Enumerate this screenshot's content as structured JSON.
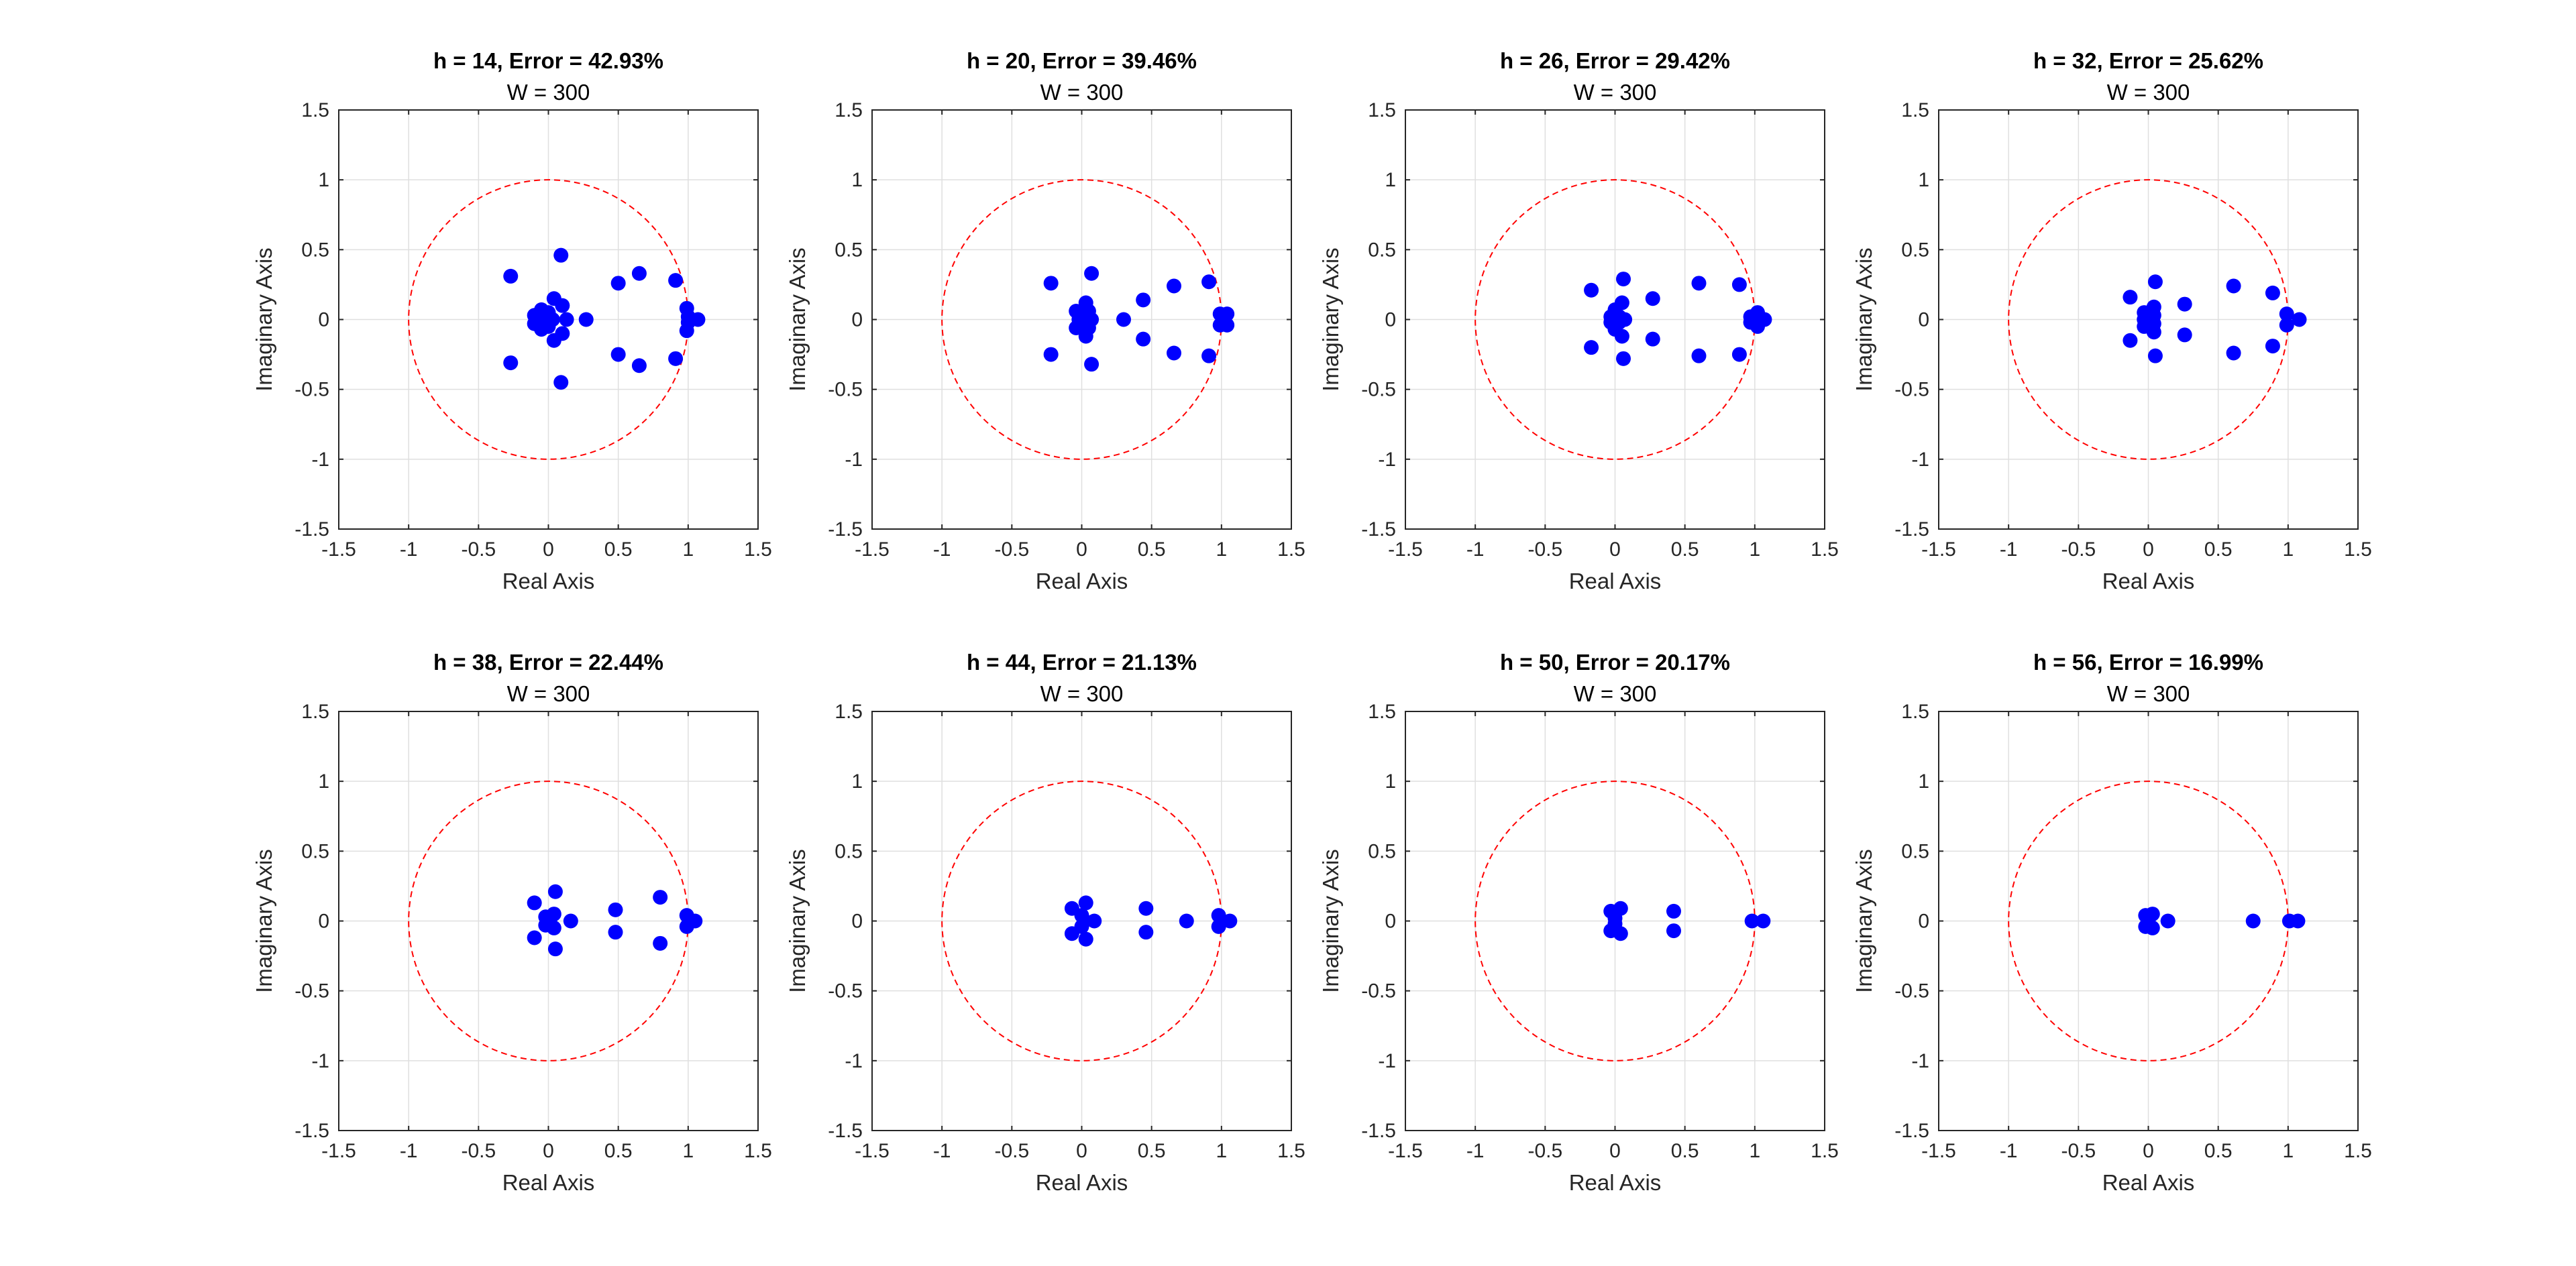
{
  "figure": {
    "background": "#ffffff"
  },
  "style": {
    "pole_color": "#0000ff",
    "circle_color": "#ff0000",
    "grid_color": "#dfdfdf",
    "axes_color": "#262626"
  },
  "chart_data": [
    {
      "type": "scatter",
      "title": "h = 14, Error = 42.93%",
      "subtitle": "W = 300",
      "xlabel": "Real Axis",
      "ylabel": "Imaginary Axis",
      "xlim": [
        -1.5,
        1.5
      ],
      "ylim": [
        -1.5,
        1.5
      ],
      "xticks": [
        -1.5,
        -1,
        -0.5,
        0,
        0.5,
        1,
        1.5
      ],
      "yticks": [
        -1.5,
        -1,
        -0.5,
        0,
        0.5,
        1,
        1.5
      ],
      "xtick_labels": [
        "-1.5",
        "-1",
        "-0.5",
        "0",
        "0.5",
        "1",
        "1.5"
      ],
      "ytick_labels": [
        "-1.5",
        "-1",
        "-0.5",
        "0",
        "0.5",
        "1",
        "1.5"
      ],
      "grid": true,
      "unit_circle": {
        "radius": 1,
        "style": "dashed"
      },
      "series": [
        {
          "name": "poles",
          "points": [
            [
              -0.27,
              0.31
            ],
            [
              -0.27,
              -0.31
            ],
            [
              0.09,
              0.46
            ],
            [
              0.09,
              -0.45
            ],
            [
              0.04,
              0.15
            ],
            [
              0.04,
              -0.15
            ],
            [
              -0.1,
              0.03
            ],
            [
              -0.1,
              -0.03
            ],
            [
              -0.05,
              0.07
            ],
            [
              -0.05,
              -0.07
            ],
            [
              0.0,
              0.05
            ],
            [
              0.0,
              -0.05
            ],
            [
              0.03,
              0.0
            ],
            [
              -0.02,
              0.0
            ],
            [
              0.1,
              0.1
            ],
            [
              0.1,
              -0.1
            ],
            [
              0.13,
              0.0
            ],
            [
              0.27,
              0.0
            ],
            [
              0.5,
              0.26
            ],
            [
              0.5,
              -0.25
            ],
            [
              0.65,
              0.33
            ],
            [
              0.65,
              -0.33
            ],
            [
              0.91,
              0.28
            ],
            [
              0.91,
              -0.28
            ],
            [
              0.99,
              0.08
            ],
            [
              0.99,
              -0.08
            ],
            [
              1.0,
              0.02
            ],
            [
              1.0,
              -0.02
            ],
            [
              1.07,
              0.0
            ]
          ]
        }
      ]
    },
    {
      "type": "scatter",
      "title": "h = 20, Error = 39.46%",
      "subtitle": "W = 300",
      "xlabel": "Real Axis",
      "ylabel": "Imaginary Axis",
      "xlim": [
        -1.5,
        1.5
      ],
      "ylim": [
        -1.5,
        1.5
      ],
      "xticks": [
        -1.5,
        -1,
        -0.5,
        0,
        0.5,
        1,
        1.5
      ],
      "yticks": [
        -1.5,
        -1,
        -0.5,
        0,
        0.5,
        1,
        1.5
      ],
      "xtick_labels": [
        "-1.5",
        "-1",
        "-0.5",
        "0",
        "0.5",
        "1",
        "1.5"
      ],
      "ytick_labels": [
        "-1.5",
        "-1",
        "-0.5",
        "0",
        "0.5",
        "1",
        "1.5"
      ],
      "grid": true,
      "unit_circle": {
        "radius": 1,
        "style": "dashed"
      },
      "series": [
        {
          "name": "poles",
          "points": [
            [
              -0.22,
              0.26
            ],
            [
              -0.22,
              -0.25
            ],
            [
              0.07,
              0.33
            ],
            [
              0.07,
              -0.32
            ],
            [
              0.03,
              0.12
            ],
            [
              0.03,
              -0.12
            ],
            [
              -0.04,
              0.06
            ],
            [
              -0.04,
              -0.06
            ],
            [
              0.05,
              0.06
            ],
            [
              0.05,
              -0.06
            ],
            [
              0.0,
              0.03
            ],
            [
              0.0,
              -0.03
            ],
            [
              -0.02,
              0.0
            ],
            [
              0.07,
              0.0
            ],
            [
              0.3,
              0.0
            ],
            [
              0.44,
              0.14
            ],
            [
              0.44,
              -0.14
            ],
            [
              0.66,
              0.24
            ],
            [
              0.66,
              -0.24
            ],
            [
              0.91,
              0.27
            ],
            [
              0.91,
              -0.26
            ],
            [
              0.99,
              0.04
            ],
            [
              0.99,
              -0.04
            ],
            [
              1.04,
              0.04
            ],
            [
              1.04,
              -0.04
            ]
          ]
        }
      ]
    },
    {
      "type": "scatter",
      "title": "h = 26, Error = 29.42%",
      "subtitle": "W = 300",
      "xlabel": "Real Axis",
      "ylabel": "Imaginary Axis",
      "xlim": [
        -1.5,
        1.5
      ],
      "ylim": [
        -1.5,
        1.5
      ],
      "xticks": [
        -1.5,
        -1,
        -0.5,
        0,
        0.5,
        1,
        1.5
      ],
      "yticks": [
        -1.5,
        -1,
        -0.5,
        0,
        0.5,
        1,
        1.5
      ],
      "xtick_labels": [
        "-1.5",
        "-1",
        "-0.5",
        "0",
        "0.5",
        "1",
        "1.5"
      ],
      "ytick_labels": [
        "-1.5",
        "-1",
        "-0.5",
        "0",
        "0.5",
        "1",
        "1.5"
      ],
      "grid": true,
      "unit_circle": {
        "radius": 1,
        "style": "dashed"
      },
      "series": [
        {
          "name": "poles",
          "points": [
            [
              -0.17,
              0.21
            ],
            [
              -0.17,
              -0.2
            ],
            [
              0.06,
              0.29
            ],
            [
              0.06,
              -0.28
            ],
            [
              0.05,
              0.12
            ],
            [
              0.05,
              -0.12
            ],
            [
              0.0,
              0.07
            ],
            [
              0.0,
              -0.07
            ],
            [
              -0.03,
              0.02
            ],
            [
              -0.03,
              -0.02
            ],
            [
              0.03,
              0.02
            ],
            [
              0.03,
              -0.02
            ],
            [
              0.07,
              0.0
            ],
            [
              0.27,
              0.15
            ],
            [
              0.27,
              -0.14
            ],
            [
              0.6,
              0.26
            ],
            [
              0.6,
              -0.26
            ],
            [
              0.89,
              0.25
            ],
            [
              0.89,
              -0.25
            ],
            [
              0.97,
              0.02
            ],
            [
              0.97,
              -0.02
            ],
            [
              1.02,
              0.05
            ],
            [
              1.02,
              -0.05
            ],
            [
              1.07,
              0.0
            ]
          ]
        }
      ]
    },
    {
      "type": "scatter",
      "title": "h = 32, Error = 25.62%",
      "subtitle": "W = 300",
      "xlabel": "Real Axis",
      "ylabel": "Imaginary Axis",
      "xlim": [
        -1.5,
        1.5
      ],
      "ylim": [
        -1.5,
        1.5
      ],
      "xticks": [
        -1.5,
        -1,
        -0.5,
        0,
        0.5,
        1,
        1.5
      ],
      "yticks": [
        -1.5,
        -1,
        -0.5,
        0,
        0.5,
        1,
        1.5
      ],
      "xtick_labels": [
        "-1.5",
        "-1",
        "-0.5",
        "0",
        "0.5",
        "1",
        "1.5"
      ],
      "ytick_labels": [
        "-1.5",
        "-1",
        "-0.5",
        "0",
        "0.5",
        "1",
        "1.5"
      ],
      "grid": true,
      "unit_circle": {
        "radius": 1,
        "style": "dashed"
      },
      "series": [
        {
          "name": "poles",
          "points": [
            [
              -0.13,
              0.16
            ],
            [
              -0.13,
              -0.15
            ],
            [
              0.05,
              0.27
            ],
            [
              0.05,
              -0.26
            ],
            [
              0.04,
              0.09
            ],
            [
              0.04,
              -0.09
            ],
            [
              -0.03,
              0.05
            ],
            [
              -0.03,
              -0.05
            ],
            [
              0.04,
              0.03
            ],
            [
              0.04,
              -0.03
            ],
            [
              -0.03,
              0.0
            ],
            [
              0.03,
              0.0
            ],
            [
              0.26,
              0.11
            ],
            [
              0.26,
              -0.11
            ],
            [
              0.61,
              0.24
            ],
            [
              0.61,
              -0.24
            ],
            [
              0.89,
              0.19
            ],
            [
              0.89,
              -0.19
            ],
            [
              0.99,
              0.04
            ],
            [
              0.99,
              -0.04
            ],
            [
              1.08,
              0.0
            ]
          ]
        }
      ]
    },
    {
      "type": "scatter",
      "title": "h = 38, Error = 22.44%",
      "subtitle": "W = 300",
      "xlabel": "Real Axis",
      "ylabel": "Imaginary Axis",
      "xlim": [
        -1.5,
        1.5
      ],
      "ylim": [
        -1.5,
        1.5
      ],
      "xticks": [
        -1.5,
        -1,
        -0.5,
        0,
        0.5,
        1,
        1.5
      ],
      "yticks": [
        -1.5,
        -1,
        -0.5,
        0,
        0.5,
        1,
        1.5
      ],
      "xtick_labels": [
        "-1.5",
        "-1",
        "-0.5",
        "0",
        "0.5",
        "1",
        "1.5"
      ],
      "ytick_labels": [
        "-1.5",
        "-1",
        "-0.5",
        "0",
        "0.5",
        "1",
        "1.5"
      ],
      "grid": true,
      "unit_circle": {
        "radius": 1,
        "style": "dashed"
      },
      "series": [
        {
          "name": "poles",
          "points": [
            [
              -0.1,
              0.13
            ],
            [
              -0.1,
              -0.12
            ],
            [
              0.05,
              0.21
            ],
            [
              0.05,
              -0.2
            ],
            [
              0.04,
              0.05
            ],
            [
              0.04,
              -0.05
            ],
            [
              -0.02,
              0.03
            ],
            [
              -0.02,
              -0.03
            ],
            [
              0.01,
              0.0
            ],
            [
              0.16,
              0.0
            ],
            [
              0.48,
              0.08
            ],
            [
              0.48,
              -0.08
            ],
            [
              0.8,
              0.17
            ],
            [
              0.8,
              -0.16
            ],
            [
              0.99,
              0.04
            ],
            [
              0.99,
              -0.04
            ],
            [
              1.05,
              0.0
            ]
          ]
        }
      ]
    },
    {
      "type": "scatter",
      "title": "h = 44, Error = 21.13%",
      "subtitle": "W = 300",
      "xlabel": "Real Axis",
      "ylabel": "Imaginary Axis",
      "xlim": [
        -1.5,
        1.5
      ],
      "ylim": [
        -1.5,
        1.5
      ],
      "xticks": [
        -1.5,
        -1,
        -0.5,
        0,
        0.5,
        1,
        1.5
      ],
      "yticks": [
        -1.5,
        -1,
        -0.5,
        0,
        0.5,
        1,
        1.5
      ],
      "xtick_labels": [
        "-1.5",
        "-1",
        "-0.5",
        "0",
        "0.5",
        "1",
        "1.5"
      ],
      "ytick_labels": [
        "-1.5",
        "-1",
        "-0.5",
        "0",
        "0.5",
        "1",
        "1.5"
      ],
      "grid": true,
      "unit_circle": {
        "radius": 1,
        "style": "dashed"
      },
      "series": [
        {
          "name": "poles",
          "points": [
            [
              -0.07,
              0.09
            ],
            [
              -0.07,
              -0.09
            ],
            [
              0.03,
              0.13
            ],
            [
              0.03,
              -0.13
            ],
            [
              0.0,
              0.04
            ],
            [
              0.0,
              -0.04
            ],
            [
              0.02,
              0.0
            ],
            [
              0.09,
              0.0
            ],
            [
              0.46,
              0.09
            ],
            [
              0.46,
              -0.08
            ],
            [
              0.75,
              0.0
            ],
            [
              0.98,
              0.04
            ],
            [
              0.98,
              -0.04
            ],
            [
              1.06,
              0.0
            ]
          ]
        }
      ]
    },
    {
      "type": "scatter",
      "title": "h = 50, Error = 20.17%",
      "subtitle": "W = 300",
      "xlabel": "Real Axis",
      "ylabel": "Imaginary Axis",
      "xlim": [
        -1.5,
        1.5
      ],
      "ylim": [
        -1.5,
        1.5
      ],
      "xticks": [
        -1.5,
        -1,
        -0.5,
        0,
        0.5,
        1,
        1.5
      ],
      "yticks": [
        -1.5,
        -1,
        -0.5,
        0,
        0.5,
        1,
        1.5
      ],
      "xtick_labels": [
        "-1.5",
        "-1",
        "-0.5",
        "0",
        "0.5",
        "1",
        "1.5"
      ],
      "ytick_labels": [
        "-1.5",
        "-1",
        "-0.5",
        "0",
        "0.5",
        "1",
        "1.5"
      ],
      "grid": true,
      "unit_circle": {
        "radius": 1,
        "style": "dashed"
      },
      "series": [
        {
          "name": "poles",
          "points": [
            [
              -0.03,
              0.07
            ],
            [
              -0.03,
              -0.07
            ],
            [
              0.04,
              0.09
            ],
            [
              0.04,
              -0.09
            ],
            [
              0.0,
              0.02
            ],
            [
              0.0,
              -0.02
            ],
            [
              0.42,
              0.07
            ],
            [
              0.42,
              -0.07
            ],
            [
              0.98,
              0.0
            ],
            [
              1.06,
              0.0
            ]
          ]
        }
      ]
    },
    {
      "type": "scatter",
      "title": "h = 56, Error = 16.99%",
      "subtitle": "W = 300",
      "xlabel": "Real Axis",
      "ylabel": "Imaginary Axis",
      "xlim": [
        -1.5,
        1.5
      ],
      "ylim": [
        -1.5,
        1.5
      ],
      "xticks": [
        -1.5,
        -1,
        -0.5,
        0,
        0.5,
        1,
        1.5
      ],
      "yticks": [
        -1.5,
        -1,
        -0.5,
        0,
        0.5,
        1,
        1.5
      ],
      "xtick_labels": [
        "-1.5",
        "-1",
        "-0.5",
        "0",
        "0.5",
        "1",
        "1.5"
      ],
      "ytick_labels": [
        "-1.5",
        "-1",
        "-0.5",
        "0",
        "0.5",
        "1",
        "1.5"
      ],
      "grid": true,
      "unit_circle": {
        "radius": 1,
        "style": "dashed"
      },
      "series": [
        {
          "name": "poles",
          "points": [
            [
              -0.02,
              0.04
            ],
            [
              -0.02,
              -0.04
            ],
            [
              0.03,
              0.05
            ],
            [
              0.03,
              -0.05
            ],
            [
              0.0,
              0.0
            ],
            [
              0.14,
              0.0
            ],
            [
              0.75,
              0.0
            ],
            [
              1.01,
              0.0
            ],
            [
              1.07,
              0.0
            ]
          ]
        }
      ]
    }
  ]
}
